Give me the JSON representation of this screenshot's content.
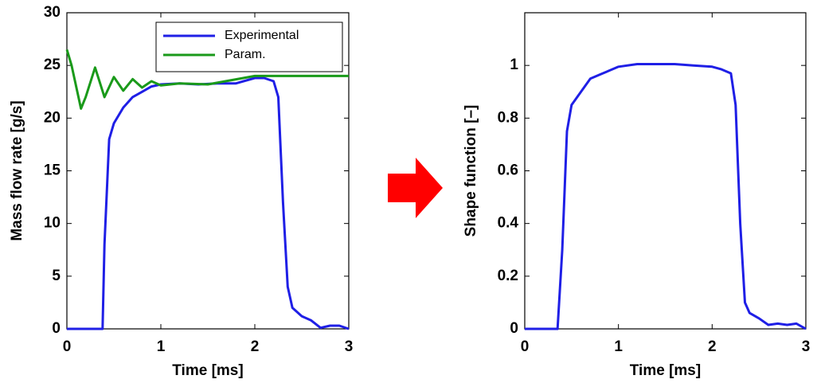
{
  "chart_data": [
    {
      "type": "line",
      "x_label": "Time [ms]",
      "y_label": "Mass flow rate [g/s]",
      "xlim": [
        0,
        3
      ],
      "xticks": [
        0,
        1,
        2,
        3
      ],
      "ylim": [
        0,
        30
      ],
      "yticks": [
        0,
        5,
        10,
        15,
        20,
        25,
        30
      ],
      "legend": "upper right",
      "grid": false,
      "series": [
        {
          "name": "Experimental",
          "color": "#1f1fe6",
          "x": [
            0,
            0.1,
            0.38,
            0.4,
            0.45,
            0.5,
            0.6,
            0.7,
            0.8,
            0.9,
            1.0,
            1.2,
            1.4,
            1.6,
            1.8,
            2.0,
            2.1,
            2.2,
            2.25,
            2.3,
            2.35,
            2.4,
            2.5,
            2.6,
            2.7,
            2.8,
            2.9,
            3.0
          ],
          "values": [
            0,
            0,
            0,
            8,
            18,
            19.5,
            21,
            22,
            22.5,
            23,
            23.2,
            23.3,
            23.2,
            23.3,
            23.3,
            23.8,
            23.8,
            23.5,
            22,
            12,
            4,
            2,
            1.2,
            0.8,
            0.1,
            0.3,
            0.3,
            0
          ]
        },
        {
          "name": "Param.",
          "color": "#1a9a1a",
          "x": [
            0,
            0.05,
            0.15,
            0.2,
            0.3,
            0.4,
            0.5,
            0.6,
            0.7,
            0.8,
            0.9,
            1.0,
            1.2,
            1.5,
            2.0,
            2.5,
            3.0
          ],
          "values": [
            26.5,
            25,
            20.9,
            22,
            24.8,
            22,
            23.9,
            22.6,
            23.7,
            22.9,
            23.5,
            23.1,
            23.3,
            23.2,
            24,
            24,
            24
          ]
        }
      ]
    },
    {
      "type": "line",
      "x_label": "Time [ms]",
      "y_label": "Shape function [–]",
      "xlim": [
        0,
        3
      ],
      "xticks": [
        0,
        1,
        2,
        3
      ],
      "ylim": [
        0,
        1.2
      ],
      "yticks": [
        0,
        0.2,
        0.4,
        0.6,
        0.8,
        1
      ],
      "grid": false,
      "series": [
        {
          "color": "#1f1fe6",
          "x": [
            0,
            0.1,
            0.35,
            0.4,
            0.45,
            0.5,
            0.6,
            0.7,
            0.8,
            0.9,
            1.0,
            1.2,
            1.4,
            1.6,
            1.8,
            2.0,
            2.1,
            2.2,
            2.25,
            2.3,
            2.35,
            2.4,
            2.5,
            2.6,
            2.7,
            2.8,
            2.9,
            3.0
          ],
          "values": [
            0,
            0,
            0,
            0.3,
            0.75,
            0.85,
            0.9,
            0.95,
            0.965,
            0.98,
            0.995,
            1.005,
            1.005,
            1.005,
            1,
            0.995,
            0.985,
            0.97,
            0.85,
            0.4,
            0.1,
            0.06,
            0.04,
            0.015,
            0.02,
            0.015,
            0.02,
            0
          ]
        }
      ]
    }
  ]
}
